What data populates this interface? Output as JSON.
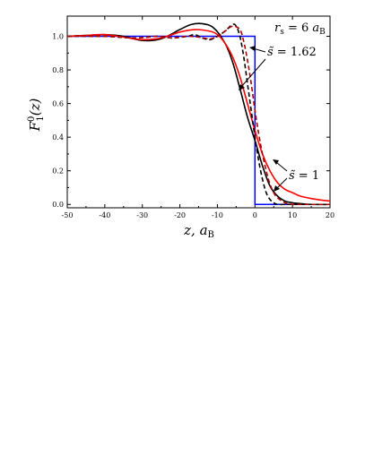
{
  "chart_data": {
    "type": "line",
    "xlabel": "z, a_B",
    "ylabel": "F_1^0(z)",
    "xlim": [
      -50,
      20
    ],
    "ylim": [
      -0.02,
      1.12
    ],
    "xticks": [
      -50,
      -40,
      -30,
      -20,
      -10,
      0,
      10,
      20
    ],
    "yticks": [
      0.0,
      0.2,
      0.4,
      0.6,
      0.8,
      1.0
    ],
    "xtick_labels": [
      "-50",
      "-40",
      "-30",
      "-20",
      "-10",
      "0",
      "10",
      "20"
    ],
    "ytick_labels": [
      "0.0",
      "0.2",
      "0.4",
      "0.6",
      "0.8",
      "1.0"
    ],
    "grid": false,
    "legend": "none",
    "annotations": {
      "rs": "r_s = 6 a_B",
      "s162": "s̃ = 1.62",
      "s1": "s̃ = 1"
    },
    "series": [
      {
        "color": "#0000ff",
        "style": "solid",
        "x": [
          -50,
          0,
          0,
          20
        ],
        "y": [
          1.0,
          1.0,
          0.0,
          0.0
        ]
      },
      {
        "color": "#000000",
        "style": "solid",
        "x": [
          -50,
          -45,
          -40,
          -35,
          -30,
          -25,
          -20,
          -17,
          -14,
          -11,
          -8,
          -6,
          -4,
          -2,
          0,
          2,
          4,
          6,
          8,
          10,
          12,
          15,
          20
        ],
        "y": [
          1.0,
          1.005,
          1.01,
          1.0,
          0.975,
          0.985,
          1.04,
          1.07,
          1.075,
          1.05,
          0.96,
          0.85,
          0.69,
          0.52,
          0.38,
          0.23,
          0.11,
          0.05,
          0.02,
          0.01,
          0.005,
          0.0,
          0.0
        ]
      },
      {
        "color": "#ff0000",
        "style": "solid",
        "x": [
          -50,
          -45,
          -40,
          -35,
          -30,
          -25,
          -20,
          -16,
          -12,
          -10,
          -8,
          -6,
          -4,
          -2,
          0,
          2,
          4,
          6,
          8,
          10,
          12,
          15,
          18,
          20
        ],
        "y": [
          1.0,
          1.005,
          1.01,
          0.995,
          0.98,
          0.99,
          1.025,
          1.04,
          1.03,
          1.01,
          0.96,
          0.88,
          0.76,
          0.6,
          0.44,
          0.3,
          0.2,
          0.13,
          0.09,
          0.07,
          0.05,
          0.035,
          0.025,
          0.02
        ]
      },
      {
        "color": "#000000",
        "style": "dashed",
        "x": [
          -50,
          -40,
          -32,
          -26,
          -22,
          -18,
          -16,
          -14,
          -12,
          -10,
          -8,
          -6,
          -5,
          -4,
          -3,
          -2,
          -1,
          0,
          1,
          2,
          3,
          4,
          5,
          6,
          8,
          10,
          20
        ],
        "y": [
          1.0,
          1.0,
          0.99,
          1.0,
          0.99,
          1.0,
          1.01,
          0.99,
          0.98,
          1.0,
          1.03,
          1.07,
          1.06,
          1.0,
          0.88,
          0.72,
          0.56,
          0.4,
          0.26,
          0.15,
          0.07,
          0.03,
          0.01,
          0.0,
          0.0,
          0.0,
          0.0
        ]
      },
      {
        "color": "#aa0000",
        "style": "dashed",
        "x": [
          -50,
          -40,
          -32,
          -26,
          -22,
          -18,
          -15,
          -12,
          -10,
          -8,
          -6,
          -4,
          -3,
          -2,
          -1,
          0,
          1,
          2,
          3,
          4,
          5,
          6,
          8,
          10,
          12,
          20
        ],
        "y": [
          1.0,
          1.0,
          0.99,
          1.0,
          0.99,
          1.0,
          0.995,
          0.985,
          1.0,
          1.03,
          1.06,
          1.04,
          0.97,
          0.86,
          0.72,
          0.56,
          0.42,
          0.3,
          0.2,
          0.12,
          0.07,
          0.04,
          0.01,
          0.0,
          0.0,
          0.0
        ]
      }
    ]
  }
}
